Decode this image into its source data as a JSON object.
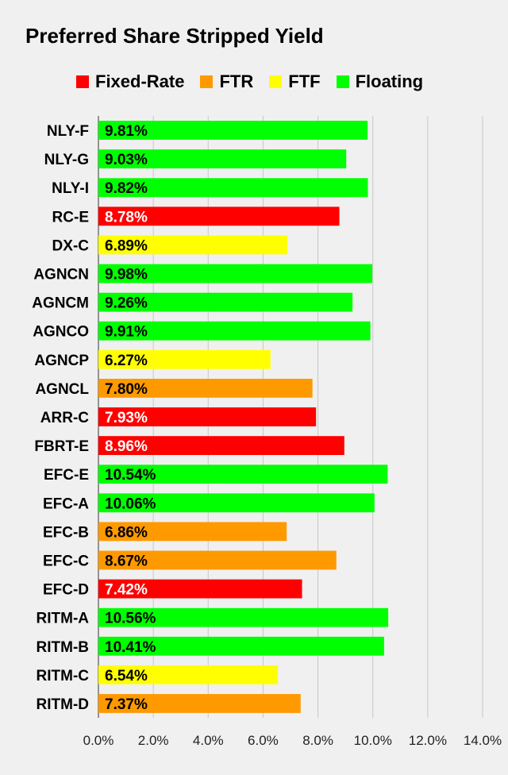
{
  "chart_data": {
    "type": "bar",
    "orientation": "horizontal",
    "title": "Preferred Share Stripped Yield",
    "legend": [
      {
        "name": "Fixed-Rate",
        "color": "#ff0000"
      },
      {
        "name": "FTR",
        "color": "#ff9900"
      },
      {
        "name": "FTF",
        "color": "#ffff00"
      },
      {
        "name": "Floating",
        "color": "#00ff00"
      }
    ],
    "legend_position": "top",
    "categories": [
      "NLY-F",
      "NLY-G",
      "NLY-I",
      "RC-E",
      "DX-C",
      "AGNCN",
      "AGNCM",
      "AGNCO",
      "AGNCP",
      "AGNCL",
      "ARR-C",
      "FBRT-E",
      "EFC-E",
      "EFC-A",
      "EFC-B",
      "EFC-C",
      "EFC-D",
      "RITM-A",
      "RITM-B",
      "RITM-C",
      "RITM-D"
    ],
    "values": [
      9.81,
      9.03,
      9.82,
      8.78,
      6.89,
      9.98,
      9.26,
      9.91,
      6.27,
      7.8,
      7.93,
      8.96,
      10.54,
      10.06,
      6.86,
      8.67,
      7.42,
      10.56,
      10.41,
      6.54,
      7.37
    ],
    "value_labels": [
      "9.81%",
      "9.03%",
      "9.82%",
      "8.78%",
      "6.89%",
      "9.98%",
      "9.26%",
      "9.91%",
      "6.27%",
      "7.80%",
      "7.93%",
      "8.96%",
      "10.54%",
      "10.06%",
      "6.86%",
      "8.67%",
      "7.42%",
      "10.56%",
      "10.41%",
      "6.54%",
      "7.37%"
    ],
    "bar_types": [
      "Floating",
      "Floating",
      "Floating",
      "Fixed-Rate",
      "FTF",
      "Floating",
      "Floating",
      "Floating",
      "FTF",
      "FTR",
      "Fixed-Rate",
      "Fixed-Rate",
      "Floating",
      "Floating",
      "FTR",
      "FTR",
      "Fixed-Rate",
      "Floating",
      "Floating",
      "FTF",
      "FTR"
    ],
    "xlim": [
      0,
      14
    ],
    "x_ticks": [
      0,
      2,
      4,
      6,
      8,
      10,
      12,
      14
    ],
    "x_tick_labels": [
      "0.0%",
      "2.0%",
      "4.0%",
      "6.0%",
      "8.0%",
      "10.0%",
      "12.0%",
      "14.0%"
    ],
    "grid": true,
    "xlabel": "",
    "ylabel": ""
  }
}
